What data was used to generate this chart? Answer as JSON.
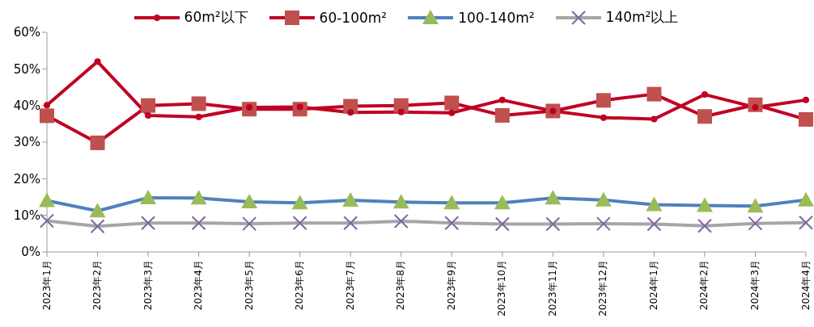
{
  "chart_data": {
    "type": "line",
    "categories": [
      "2023年1月",
      "2023年2月",
      "2023年3月",
      "2023年4月",
      "2023年5月",
      "2023年6月",
      "2023年7月",
      "2023年8月",
      "2023年9月",
      "2023年10月",
      "2023年11月",
      "2023年12月",
      "2024年1月",
      "2024年2月",
      "2024年3月",
      "2024年4月"
    ],
    "series": [
      {
        "name": "60m²以下",
        "color": "#c00023",
        "marker": "circle",
        "values": [
          40.1,
          52,
          37.3,
          36.9,
          39.5,
          39.6,
          38.1,
          38.2,
          38,
          41.5,
          38.5,
          36.7,
          36.3,
          43,
          39.5,
          41.5
        ]
      },
      {
        "name": "60-100m²",
        "color": "#c0504d",
        "marker": "square",
        "values": [
          37.2,
          29.8,
          40,
          40.5,
          39,
          39,
          39.8,
          40,
          40.7,
          37.3,
          38.5,
          41.4,
          43.1,
          37,
          40.2,
          36.2
        ]
      },
      {
        "name": "100-140m²",
        "color": "#9bbb59",
        "marker": "triangle",
        "values": [
          14,
          11.2,
          14.8,
          14.7,
          13.7,
          13.4,
          14.1,
          13.6,
          13.4,
          13.4,
          14.7,
          14.2,
          12.9,
          12.7,
          12.5,
          14.2
        ]
      },
      {
        "name": "140m²以上",
        "color": "#8064a2",
        "marker": "cross",
        "values": [
          8.5,
          7,
          7.9,
          7.9,
          7.7,
          7.9,
          7.9,
          8.4,
          7.9,
          7.6,
          7.6,
          7.7,
          7.6,
          7.1,
          7.8,
          8
        ]
      }
    ],
    "ylim": [
      0,
      60
    ],
    "yticks": [
      {
        "value": 0,
        "label": "0%"
      },
      {
        "value": 10,
        "label": "10%"
      },
      {
        "value": 20,
        "label": "20%"
      },
      {
        "value": 30,
        "label": "30%"
      },
      {
        "value": 40,
        "label": "40%"
      },
      {
        "value": 50,
        "label": "50%"
      },
      {
        "value": 60,
        "label": "60%"
      }
    ],
    "grid": false,
    "legend": "top"
  }
}
